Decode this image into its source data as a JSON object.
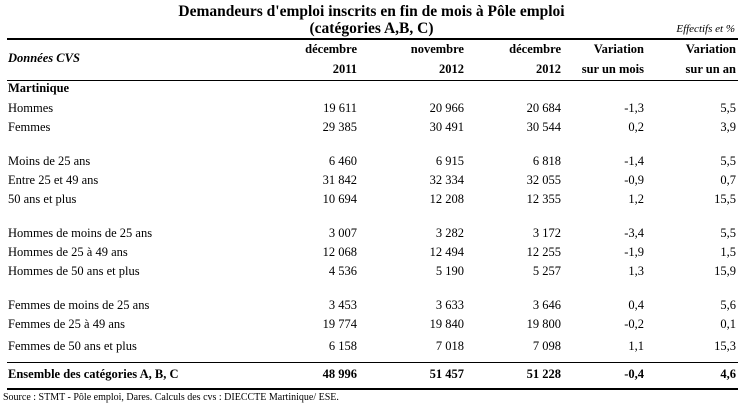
{
  "title": {
    "line1": "Demandeurs d'emploi inscrits en fin de mois à Pôle emploi",
    "line2": "(catégories A,B, C)"
  },
  "unit_note": "Effectifs et %",
  "header": {
    "donnees": "Données CVS",
    "col1": {
      "top": "décembre",
      "bottom": "2011"
    },
    "col2": {
      "top": "novembre",
      "bottom": "2012"
    },
    "col3": {
      "top": "décembre",
      "bottom": "2012"
    },
    "col4": {
      "top": "Variation",
      "bottom": "sur un mois"
    },
    "col5": {
      "top": "Variation",
      "bottom": "sur un an"
    }
  },
  "section": "Martinique",
  "rows": [
    {
      "label": "Hommes",
      "v": [
        "19 611",
        "20 966",
        "20 684",
        "-1,3",
        "5,5"
      ]
    },
    {
      "label": "Femmes",
      "v": [
        "29 385",
        "30 491",
        "30 544",
        "0,2",
        "3,9"
      ]
    },
    {
      "label": "Moins de 25 ans",
      "v": [
        "6 460",
        "6 915",
        "6 818",
        "-1,4",
        "5,5"
      ]
    },
    {
      "label": "Entre 25 et 49 ans",
      "v": [
        "31 842",
        "32 334",
        "32 055",
        "-0,9",
        "0,7"
      ]
    },
    {
      "label": "50 ans et plus",
      "v": [
        "10 694",
        "12 208",
        "12 355",
        "1,2",
        "15,5"
      ]
    },
    {
      "label": "Hommes de moins de 25 ans",
      "v": [
        "3 007",
        "3 282",
        "3 172",
        "-3,4",
        "5,5"
      ]
    },
    {
      "label": "Hommes de 25 à 49 ans",
      "v": [
        "12 068",
        "12 494",
        "12 255",
        "-1,9",
        "1,5"
      ]
    },
    {
      "label": "Hommes de 50 ans et plus",
      "v": [
        "4 536",
        "5 190",
        "5 257",
        "1,3",
        "15,9"
      ]
    },
    {
      "label": "Femmes de moins de 25 ans",
      "v": [
        "3 453",
        "3 633",
        "3 646",
        "0,4",
        "5,6"
      ]
    },
    {
      "label": "Femmes de 25 à 49 ans",
      "v": [
        "19 774",
        "19 840",
        "19 800",
        "-0,2",
        "0,1"
      ]
    },
    {
      "label": "Femmes de 50 ans et plus",
      "v": [
        "6 158",
        "7 018",
        "7 098",
        "1,1",
        "15,3"
      ]
    }
  ],
  "total": {
    "label": "Ensemble des catégories A, B, C",
    "v": [
      "48 996",
      "51 457",
      "51 228",
      "-0,4",
      "4,6"
    ]
  },
  "source": "Source : STMT - Pôle emploi, Dares. Calculs des cvs : DIECCTE Martinique/ ESE."
}
